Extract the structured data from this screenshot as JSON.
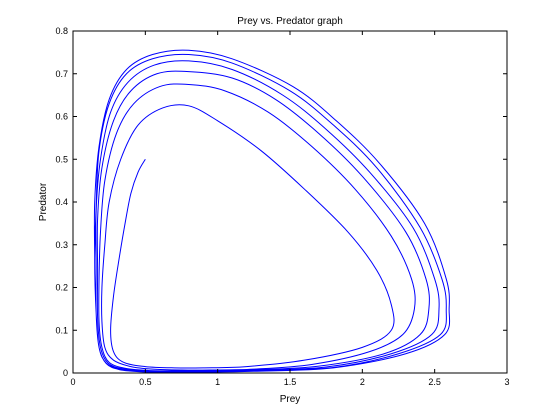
{
  "chart_data": {
    "type": "line",
    "title": "Prey vs. Predator graph",
    "xlabel": "Prey",
    "ylabel": "Predator",
    "xlim": [
      0,
      3
    ],
    "ylim": [
      0,
      0.8
    ],
    "xticks": [
      0,
      0.5,
      1,
      1.5,
      2,
      2.5,
      3
    ],
    "xtick_labels": [
      "0",
      "0.5",
      "1",
      "1.5",
      "2",
      "2.5",
      "3"
    ],
    "yticks": [
      0,
      0.1,
      0.2,
      0.3,
      0.4,
      0.5,
      0.6,
      0.7,
      0.8
    ],
    "ytick_labels": [
      "0",
      "0.1",
      "0.2",
      "0.3",
      "0.4",
      "0.5",
      "0.6",
      "0.7",
      "0.8"
    ],
    "grid": false,
    "line_color": "#0000ff",
    "series": [
      {
        "x": [
          0.5,
          0.45,
          0.4,
          0.36,
          0.32,
          0.28,
          0.26,
          0.28,
          0.35,
          0.5,
          0.7,
          0.9,
          1.2,
          1.6,
          2.0,
          2.2,
          2.2,
          2.1,
          1.9,
          1.6,
          1.3,
          1.0,
          0.8,
          0.62,
          0.45,
          0.33,
          0.25,
          0.22,
          0.2,
          0.2,
          0.22,
          0.28,
          0.4,
          0.55,
          0.75,
          0.95,
          1.25,
          1.65,
          2.05,
          2.28,
          2.36,
          2.34,
          2.2,
          1.95,
          1.65,
          1.35,
          1.05,
          0.8,
          0.6,
          0.42,
          0.3,
          0.22,
          0.19,
          0.18,
          0.18,
          0.2,
          0.25,
          0.36,
          0.52,
          0.72,
          0.95,
          1.25,
          1.7,
          2.15,
          2.4,
          2.46,
          2.44,
          2.3,
          2.0,
          1.7,
          1.4,
          1.1,
          0.8,
          0.58,
          0.4,
          0.28,
          0.2,
          0.17,
          0.17,
          0.17,
          0.19,
          0.24,
          0.34,
          0.5,
          0.7,
          0.95,
          1.25,
          1.75,
          2.2,
          2.48,
          2.53,
          2.5,
          2.35,
          2.05,
          1.75,
          1.45,
          1.1,
          0.8,
          0.56,
          0.38,
          0.26,
          0.19,
          0.16,
          0.16,
          0.16,
          0.18,
          0.23,
          0.33,
          0.48,
          0.68,
          0.95,
          1.25,
          1.8,
          2.25,
          2.54,
          2.58,
          2.55,
          2.4,
          2.1,
          1.8,
          1.5,
          1.1,
          0.8,
          0.55,
          0.37,
          0.25,
          0.18,
          0.16,
          0.15,
          0.16,
          0.18,
          0.23,
          0.32,
          0.47,
          0.67,
          0.9,
          1.25,
          1.8,
          2.3,
          2.57,
          2.6,
          2.58,
          2.43,
          2.12,
          1.82,
          1.52,
          1.1,
          0.8,
          0.55,
          0.37,
          0.25,
          0.18,
          0.15,
          0.15
        ],
        "y": [
          0.5,
          0.47,
          0.42,
          0.35,
          0.27,
          0.18,
          0.1,
          0.05,
          0.025,
          0.015,
          0.012,
          0.012,
          0.015,
          0.03,
          0.06,
          0.1,
          0.16,
          0.24,
          0.33,
          0.43,
          0.52,
          0.59,
          0.625,
          0.62,
          0.58,
          0.5,
          0.4,
          0.3,
          0.2,
          0.12,
          0.06,
          0.03,
          0.015,
          0.009,
          0.007,
          0.007,
          0.009,
          0.02,
          0.05,
          0.09,
          0.15,
          0.22,
          0.32,
          0.43,
          0.53,
          0.61,
          0.66,
          0.675,
          0.67,
          0.63,
          0.56,
          0.45,
          0.33,
          0.22,
          0.12,
          0.06,
          0.025,
          0.011,
          0.006,
          0.005,
          0.005,
          0.007,
          0.016,
          0.045,
          0.09,
          0.15,
          0.22,
          0.33,
          0.46,
          0.56,
          0.64,
          0.69,
          0.705,
          0.7,
          0.66,
          0.59,
          0.48,
          0.36,
          0.24,
          0.13,
          0.06,
          0.024,
          0.01,
          0.005,
          0.004,
          0.004,
          0.006,
          0.014,
          0.045,
          0.09,
          0.15,
          0.22,
          0.34,
          0.47,
          0.57,
          0.65,
          0.71,
          0.73,
          0.72,
          0.68,
          0.61,
          0.5,
          0.38,
          0.25,
          0.14,
          0.06,
          0.023,
          0.009,
          0.004,
          0.003,
          0.003,
          0.005,
          0.013,
          0.045,
          0.09,
          0.15,
          0.22,
          0.34,
          0.48,
          0.58,
          0.66,
          0.725,
          0.745,
          0.735,
          0.7,
          0.63,
          0.52,
          0.39,
          0.26,
          0.14,
          0.06,
          0.022,
          0.008,
          0.003,
          0.002,
          0.002,
          0.004,
          0.012,
          0.045,
          0.09,
          0.15,
          0.22,
          0.35,
          0.49,
          0.59,
          0.67,
          0.735,
          0.755,
          0.745,
          0.71,
          0.64,
          0.53,
          0.4,
          0.27
        ]
      }
    ]
  }
}
